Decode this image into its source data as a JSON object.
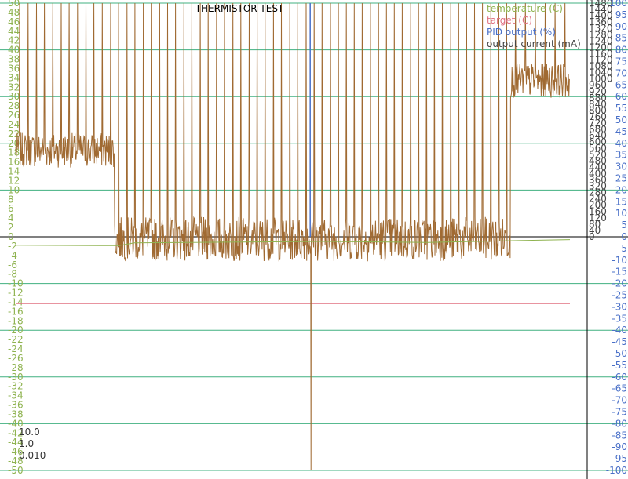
{
  "chart_data": {
    "type": "line",
    "title": "THERMISTOR TEST",
    "colors": {
      "temperature": "#8fb350",
      "target": "#e07080",
      "pid": "#4a70c8",
      "current": "#a06a32",
      "grid": "#40b080",
      "zero": "#000000"
    },
    "axes": {
      "temperature": {
        "ylim": [
          -50,
          50
        ],
        "ticks": [
          50,
          48,
          46,
          44,
          42,
          40,
          38,
          36,
          34,
          32,
          30,
          28,
          26,
          24,
          22,
          20,
          18,
          16,
          14,
          12,
          10,
          8,
          6,
          4,
          2,
          0,
          -2,
          -4,
          -6,
          -8,
          -10,
          -12,
          -14,
          -16,
          -18,
          -20,
          -22,
          -24,
          -26,
          -28,
          -30,
          -32,
          -34,
          -36,
          -38,
          -40,
          -42,
          -44,
          -46,
          -48,
          -50
        ]
      },
      "pid": {
        "ylim": [
          -100,
          100
        ],
        "ticks": [
          100,
          95,
          90,
          85,
          80,
          75,
          70,
          65,
          60,
          55,
          50,
          45,
          40,
          35,
          30,
          25,
          20,
          15,
          10,
          5,
          0,
          -5,
          -10,
          -15,
          -20,
          -25,
          -30,
          -35,
          -40,
          -45,
          -50,
          -55,
          -60,
          -65,
          -70,
          -75,
          -80,
          -85,
          -90,
          -95,
          -100
        ]
      },
      "current": {
        "ylim": [
          0,
          1480
        ],
        "ticks": [
          1480,
          1440,
          1400,
          1360,
          1320,
          1280,
          1240,
          1200,
          1160,
          1120,
          1080,
          1040,
          1000,
          960,
          920,
          880,
          840,
          800,
          760,
          720,
          680,
          640,
          600,
          560,
          520,
          480,
          440,
          400,
          360,
          320,
          280,
          240,
          200,
          160,
          120,
          80,
          40,
          0
        ]
      }
    },
    "legend": [
      "temperature (C)",
      "target (C)",
      "PID output (%)",
      "output current (mA)"
    ],
    "pid_params": [
      "10.0",
      "1.0",
      "0.010"
    ],
    "x": {
      "range": [
        0,
        700
      ]
    },
    "series": [
      {
        "name": "temperature (C)",
        "axis": "temperature",
        "segments": [
          [
            0,
            -1.8
          ],
          [
            130,
            -1.9
          ],
          [
            150,
            -1.3
          ],
          [
            390,
            -1.0
          ],
          [
            520,
            -1.2
          ],
          [
            640,
            -0.8
          ],
          [
            700,
            -0.6
          ]
        ]
      },
      {
        "name": "target (C)",
        "axis": "temperature",
        "constant": -14.3,
        "x_end": 700
      },
      {
        "name": "PID output (%)",
        "axis": "pid",
        "spike_x": 372,
        "spike_value": 100
      },
      {
        "name": "output current (mA)",
        "axis": "current",
        "phases": [
          {
            "x_start": 0,
            "x_end": 125,
            "base": 560,
            "noise": 110,
            "spikes": 12,
            "spike_value": 1480
          },
          {
            "x_start": 125,
            "x_end": 372,
            "base": 0,
            "noise": 140,
            "spikes": 24,
            "spike_value": 1480
          },
          {
            "x_start": 372,
            "x_end": 625,
            "base": 0,
            "noise": 140,
            "spikes": 25,
            "spike_value": 1480
          },
          {
            "x_start": 625,
            "x_end": 700,
            "base": 1000,
            "noise": 110,
            "spikes": 6,
            "spike_value": 1480
          }
        ],
        "dip_x": 373,
        "dip_value": -1480
      }
    ]
  }
}
